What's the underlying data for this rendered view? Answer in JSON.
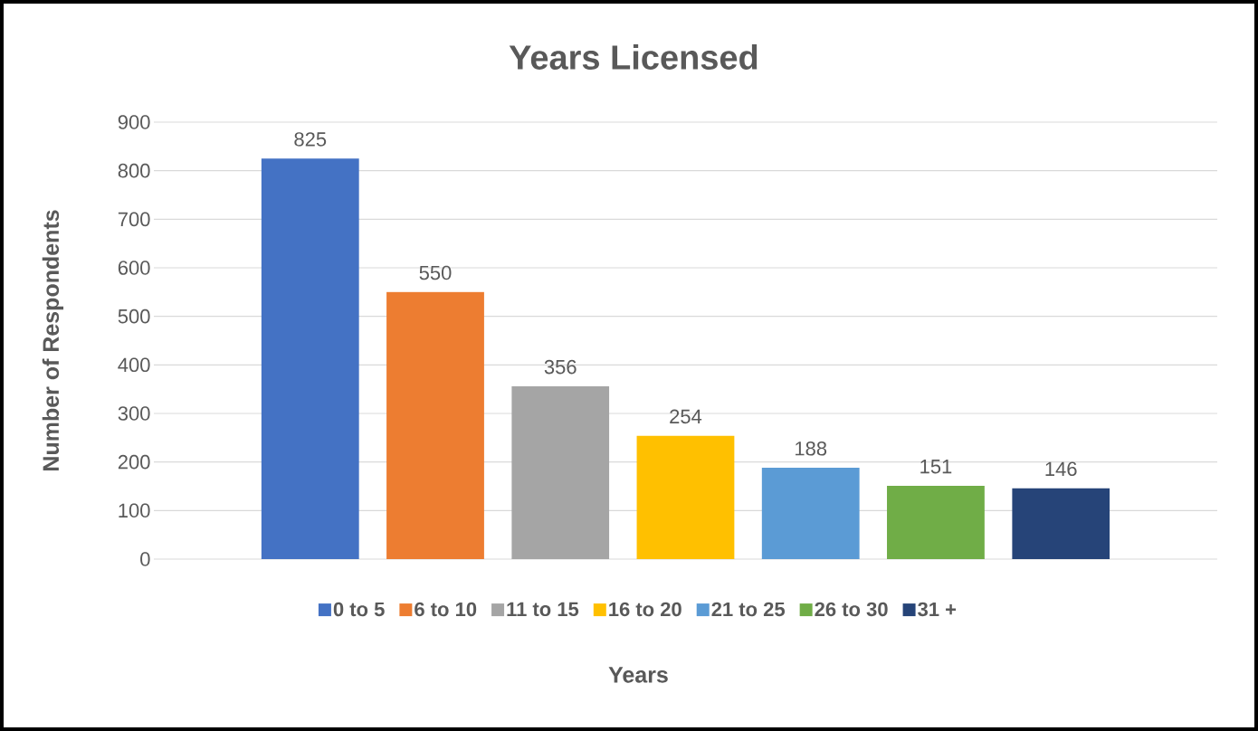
{
  "chart_data": {
    "type": "bar",
    "title": "Years Licensed",
    "xlabel": "Years",
    "ylabel": "Number of Respondents",
    "categories": [
      null
    ],
    "series": [
      {
        "name": "0 to 5",
        "color": "#4472c4",
        "values": [
          825
        ]
      },
      {
        "name": "6 to 10",
        "color": "#ed7d31",
        "values": [
          550
        ]
      },
      {
        "name": "11 to 15",
        "color": "#a5a5a5",
        "values": [
          356
        ]
      },
      {
        "name": "16 to 20",
        "color": "#ffc000",
        "values": [
          254
        ]
      },
      {
        "name": "21 to 25",
        "color": "#5b9bd5",
        "values": [
          188
        ]
      },
      {
        "name": "26 to 30",
        "color": "#70ad47",
        "values": [
          151
        ]
      },
      {
        "name": "31 +",
        "color": "#264478",
        "values": [
          146
        ]
      }
    ],
    "ylim": [
      0,
      900
    ],
    "yticks": [
      0,
      100,
      200,
      300,
      400,
      500,
      600,
      700,
      800,
      900
    ],
    "grid": "y",
    "legend": "bottom",
    "data_labels": true
  }
}
